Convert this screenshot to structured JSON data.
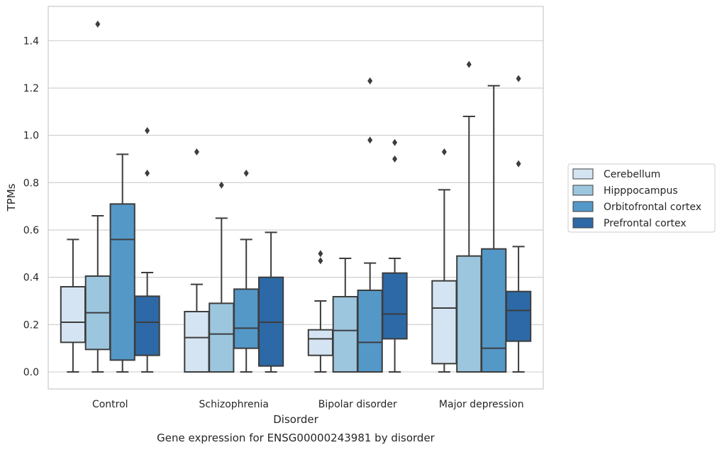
{
  "caption": "Gene expression for ENSG00000243981 by disorder",
  "chart_data": {
    "type": "box",
    "title": "",
    "xlabel": "Disorder",
    "ylabel": "TPMs",
    "ylim": [
      -0.07,
      1.55
    ],
    "yticks": [
      0.0,
      0.2,
      0.4,
      0.6,
      0.8,
      1.0,
      1.2,
      1.4
    ],
    "yticklabels": [
      "0.0",
      "0.2",
      "0.4",
      "0.6",
      "0.8",
      "1.0",
      "1.2",
      "1.4"
    ],
    "grid": "horizontal",
    "legend_position": "right",
    "categories": [
      "Control",
      "Schizophrenia",
      "Bipolar disorder",
      "Major depression"
    ],
    "series": [
      {
        "name": "Cerebellum",
        "color": "#d5e4f2",
        "boxes": [
          {
            "whislo": 0.0,
            "q1": 0.125,
            "med": 0.21,
            "q3": 0.36,
            "whishi": 0.56,
            "fliers": []
          },
          {
            "whislo": 0.0,
            "q1": 0.0,
            "med": 0.145,
            "q3": 0.255,
            "whishi": 0.37,
            "fliers": [
              0.93
            ]
          },
          {
            "whislo": 0.0,
            "q1": 0.07,
            "med": 0.14,
            "q3": 0.178,
            "whishi": 0.3,
            "fliers": [
              0.47,
              0.5
            ]
          },
          {
            "whislo": 0.0,
            "q1": 0.035,
            "med": 0.27,
            "q3": 0.385,
            "whishi": 0.77,
            "fliers": [
              0.93
            ]
          }
        ]
      },
      {
        "name": "Hipppocampus",
        "color": "#9cc6de",
        "boxes": [
          {
            "whislo": 0.0,
            "q1": 0.095,
            "med": 0.25,
            "q3": 0.405,
            "whishi": 0.66,
            "fliers": [
              1.47
            ]
          },
          {
            "whislo": 0.0,
            "q1": 0.0,
            "med": 0.16,
            "q3": 0.29,
            "whishi": 0.65,
            "fliers": [
              0.79
            ]
          },
          {
            "whislo": 0.0,
            "q1": 0.0,
            "med": 0.175,
            "q3": 0.318,
            "whishi": 0.48,
            "fliers": []
          },
          {
            "whislo": 0.0,
            "q1": 0.0,
            "med": 0.0,
            "q3": 0.49,
            "whishi": 1.08,
            "fliers": [
              1.3
            ]
          }
        ]
      },
      {
        "name": "Orbitofrontal cortex",
        "color": "#5498c8",
        "boxes": [
          {
            "whislo": 0.0,
            "q1": 0.05,
            "med": 0.56,
            "q3": 0.71,
            "whishi": 0.92,
            "fliers": []
          },
          {
            "whislo": 0.0,
            "q1": 0.1,
            "med": 0.185,
            "q3": 0.35,
            "whishi": 0.56,
            "fliers": [
              0.84
            ]
          },
          {
            "whislo": 0.0,
            "q1": 0.0,
            "med": 0.125,
            "q3": 0.345,
            "whishi": 0.46,
            "fliers": [
              0.98,
              1.23
            ]
          },
          {
            "whislo": 0.0,
            "q1": 0.0,
            "med": 0.1,
            "q3": 0.52,
            "whishi": 1.21,
            "fliers": []
          }
        ]
      },
      {
        "name": "Prefrontal cortex",
        "color": "#2d69a6",
        "boxes": [
          {
            "whislo": 0.0,
            "q1": 0.07,
            "med": 0.21,
            "q3": 0.32,
            "whishi": 0.42,
            "fliers": [
              0.84,
              1.02
            ]
          },
          {
            "whislo": 0.0,
            "q1": 0.025,
            "med": 0.21,
            "q3": 0.4,
            "whishi": 0.59,
            "fliers": []
          },
          {
            "whislo": 0.0,
            "q1": 0.14,
            "med": 0.245,
            "q3": 0.418,
            "whishi": 0.48,
            "fliers": [
              0.9,
              0.97
            ]
          },
          {
            "whislo": 0.0,
            "q1": 0.13,
            "med": 0.26,
            "q3": 0.34,
            "whishi": 0.53,
            "fliers": [
              0.88,
              1.24
            ]
          }
        ]
      }
    ]
  }
}
